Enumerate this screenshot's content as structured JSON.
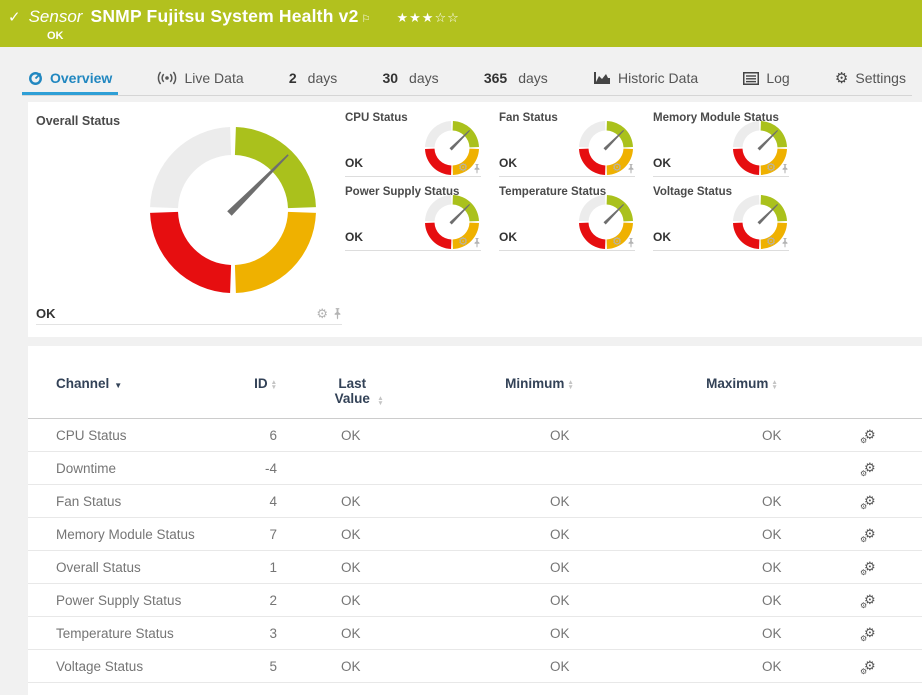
{
  "colors": {
    "header_bg": "#b2c11e",
    "tab_active": "#2187c0",
    "tab_underline": "#2e9fd6",
    "table_header_text": "#334257"
  },
  "header": {
    "kind_label": "Sensor",
    "title": "SNMP Fujitsu System Health v2",
    "status": "OK",
    "stars": "★★★☆☆"
  },
  "icons": {
    "check": "✓",
    "flag": "⚐",
    "gear": "⚙",
    "caret_down": "▼",
    "sort_up": "▲",
    "sort_down": "▼"
  },
  "tabs": [
    {
      "label": "Overview"
    },
    {
      "label": "Live Data"
    },
    {
      "bold": "2",
      "label": "days"
    },
    {
      "bold": "30",
      "label": "days"
    },
    {
      "bold": "365",
      "label": "days"
    },
    {
      "label": "Historic Data"
    },
    {
      "label": "Log"
    },
    {
      "label": "Settings"
    }
  ],
  "gauges": {
    "needle_angle_deg": 45,
    "colors": {
      "segment_ok": "#aac11c",
      "segment_warning": "#efb100",
      "segment_error": "#e60e10",
      "segment_empty": "#ececec",
      "needle": "#6e6e6e"
    },
    "overall": {
      "title": "Overall Status",
      "status": "OK"
    },
    "minis": [
      {
        "title": "CPU Status",
        "status": "OK"
      },
      {
        "title": "Fan Status",
        "status": "OK"
      },
      {
        "title": "Memory Module Status",
        "status": "OK"
      },
      {
        "title": "Power Supply Status",
        "status": "OK"
      },
      {
        "title": "Temperature Status",
        "status": "OK"
      },
      {
        "title": "Voltage Status",
        "status": "OK"
      }
    ]
  },
  "table": {
    "headers": {
      "channel": "Channel",
      "id": "ID",
      "last": "Last Value",
      "min": "Minimum",
      "max": "Maximum"
    },
    "rows": [
      {
        "channel": "CPU Status",
        "id": "6",
        "last": "OK",
        "min": "OK",
        "max": "OK"
      },
      {
        "channel": "Downtime",
        "id": "-4",
        "last": "",
        "min": "",
        "max": ""
      },
      {
        "channel": "Fan Status",
        "id": "4",
        "last": "OK",
        "min": "OK",
        "max": "OK"
      },
      {
        "channel": "Memory Module Status",
        "id": "7",
        "last": "OK",
        "min": "OK",
        "max": "OK"
      },
      {
        "channel": "Overall Status",
        "id": "1",
        "last": "OK",
        "min": "OK",
        "max": "OK"
      },
      {
        "channel": "Power Supply Status",
        "id": "2",
        "last": "OK",
        "min": "OK",
        "max": "OK"
      },
      {
        "channel": "Temperature Status",
        "id": "3",
        "last": "OK",
        "min": "OK",
        "max": "OK"
      },
      {
        "channel": "Voltage Status",
        "id": "5",
        "last": "OK",
        "min": "OK",
        "max": "OK"
      }
    ]
  }
}
